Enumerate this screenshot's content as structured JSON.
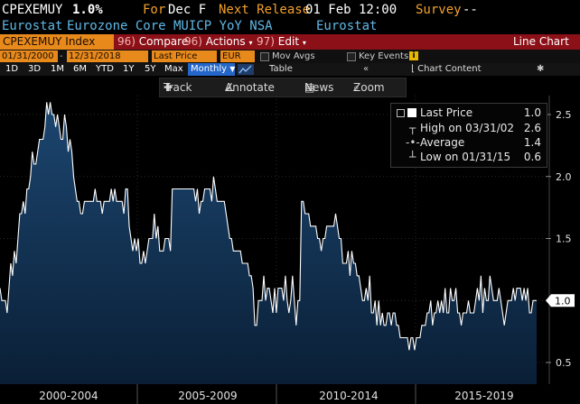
{
  "header": {
    "ticker": "CPEXEMUY",
    "last_value": "1.0%",
    "for_label": "For",
    "for_value": "Dec F",
    "next_release_label": "Next Release",
    "next_release_value": "01 Feb 12:00",
    "survey_label": "Survey",
    "survey_value": "--",
    "source": "Eurostat",
    "description": "Eurozone Core MUICP YoY NSA",
    "source_right": "Eurostat"
  },
  "menu": {
    "index_label": "CPEXEMUY Index",
    "compare_num": "96)",
    "compare_label": "Compare",
    "actions_num": "96)",
    "actions_label": "Actions",
    "edit_num": "97)",
    "edit_label": "Edit",
    "view_label": "Line Chart"
  },
  "controls": {
    "start_date": "01/31/2000",
    "end_date": "12/31/2018",
    "field": "Last Price",
    "currency": "EUR",
    "mov_avgs": "Mov Avgs",
    "key_events": "Key Events",
    "key_events_info": "i"
  },
  "periods": {
    "items": [
      "1D",
      "3D",
      "1M",
      "6M",
      "YTD",
      "1Y",
      "5Y",
      "Max"
    ],
    "frequency": "Monthly",
    "table_label": "Table",
    "chart_content_label": "Chart Content"
  },
  "toolbar": {
    "track_label": "Track",
    "annotate_label": "Annotate",
    "news_label": "News",
    "zoom_label": "Zoom"
  },
  "legend": {
    "last_price_label": "Last Price",
    "last_price_value": "1.0",
    "high_label": "High on 03/31/02",
    "high_value": "2.6",
    "average_label": "Average",
    "average_value": "1.4",
    "low_label": "Low on 01/31/15",
    "low_value": "0.6"
  },
  "colors": {
    "accent_amber": "#f2a12b",
    "menu_red": "#8c1018",
    "series_line": "#ffffff",
    "area_fill_top": "#1c4670",
    "area_fill_bottom": "#0a1f36",
    "source_blue": "#5fb8e6"
  },
  "chart_data": {
    "type": "area",
    "x_start": "2000-01",
    "frequency": "monthly",
    "yticks": [
      "0.5",
      "1.0",
      "1.5",
      "2.0",
      "2.5"
    ],
    "ylim": [
      0.45,
      2.7
    ],
    "x_period_labels": [
      "2000-2004",
      "2005-2009",
      "2010-2014",
      "2015-2019"
    ],
    "current_value_label": "1.0",
    "series": [
      {
        "name": "Last Price",
        "values": [
          1.1,
          1.0,
          1.0,
          1.0,
          0.9,
          1.1,
          1.3,
          1.2,
          1.4,
          1.3,
          1.5,
          1.7,
          1.7,
          1.8,
          1.7,
          1.9,
          1.9,
          2.0,
          2.2,
          2.1,
          2.1,
          2.2,
          2.3,
          2.3,
          2.3,
          2.4,
          2.6,
          2.5,
          2.6,
          2.5,
          2.5,
          2.4,
          2.5,
          2.4,
          2.3,
          2.3,
          2.5,
          2.4,
          2.2,
          2.3,
          2.2,
          2.0,
          1.9,
          1.8,
          1.8,
          1.7,
          1.7,
          1.8,
          1.8,
          1.8,
          1.8,
          1.8,
          1.8,
          1.9,
          1.8,
          1.8,
          1.8,
          1.7,
          1.8,
          1.8,
          1.8,
          1.8,
          1.9,
          1.8,
          1.9,
          1.8,
          1.8,
          1.8,
          1.8,
          1.7,
          1.9,
          1.9,
          1.6,
          1.5,
          1.4,
          1.5,
          1.4,
          1.5,
          1.3,
          1.3,
          1.4,
          1.3,
          1.4,
          1.5,
          1.5,
          1.5,
          1.7,
          1.5,
          1.6,
          1.4,
          1.4,
          1.4,
          1.5,
          1.5,
          1.5,
          1.4,
          1.9,
          1.9,
          1.9,
          1.9,
          1.9,
          1.9,
          1.9,
          1.9,
          1.9,
          1.9,
          1.9,
          1.9,
          1.9,
          1.8,
          1.9,
          1.7,
          1.8,
          1.8,
          1.9,
          1.9,
          1.9,
          1.9,
          1.8,
          2.0,
          1.9,
          1.8,
          1.8,
          1.8,
          1.8,
          1.8,
          1.7,
          1.6,
          1.5,
          1.5,
          1.4,
          1.4,
          1.4,
          1.4,
          1.4,
          1.3,
          1.3,
          1.3,
          1.3,
          1.2,
          1.2,
          1.1,
          0.8,
          0.8,
          1.0,
          1.0,
          1.0,
          1.2,
          1.0,
          1.1,
          1.1,
          1.0,
          0.9,
          1.1,
          0.9,
          1.1,
          1.1,
          1.1,
          1.0,
          1.2,
          1.0,
          0.9,
          1.0,
          1.2,
          1.0,
          0.8,
          1.0,
          1.0,
          1.8,
          1.8,
          1.7,
          1.7,
          1.7,
          1.6,
          1.6,
          1.6,
          1.6,
          1.5,
          1.5,
          1.4,
          1.5,
          1.5,
          1.6,
          1.6,
          1.6,
          1.6,
          1.6,
          1.7,
          1.6,
          1.5,
          1.5,
          1.3,
          1.3,
          1.3,
          1.4,
          1.2,
          1.4,
          1.3,
          1.3,
          1.2,
          1.2,
          1.1,
          1.0,
          1.0,
          1.1,
          1.0,
          1.2,
          0.9,
          0.9,
          1.0,
          0.8,
          1.0,
          0.8,
          0.9,
          0.8,
          0.8,
          0.9,
          0.9,
          0.8,
          0.9,
          0.9,
          0.8,
          0.8,
          0.7,
          0.7,
          0.7,
          0.7,
          0.7,
          0.6,
          0.7,
          0.7,
          0.6,
          0.7,
          0.7,
          0.7,
          0.8,
          0.8,
          0.8,
          0.9,
          0.9,
          1.0,
          0.8,
          0.9,
          0.9,
          1.0,
          0.9,
          1.0,
          0.9,
          1.1,
          0.9,
          0.9,
          1.1,
          1.0,
          1.0,
          1.1,
          0.9,
          0.9,
          0.8,
          0.9,
          0.9,
          0.9,
          1.0,
          0.9,
          0.9,
          0.9,
          1.0,
          1.1,
          1.0,
          1.2,
          0.9,
          1.1,
          1.0,
          1.0,
          1.2,
          1.1,
          1.0,
          1.0,
          1.0,
          1.1,
          1.0,
          0.9,
          0.8,
          0.9,
          1.0,
          1.0,
          1.0,
          1.1,
          1.0,
          1.1,
          1.1,
          1.1,
          1.0,
          1.1,
          1.0,
          1.1,
          0.9,
          0.9,
          1.0,
          1.0,
          1.0
        ]
      }
    ]
  }
}
